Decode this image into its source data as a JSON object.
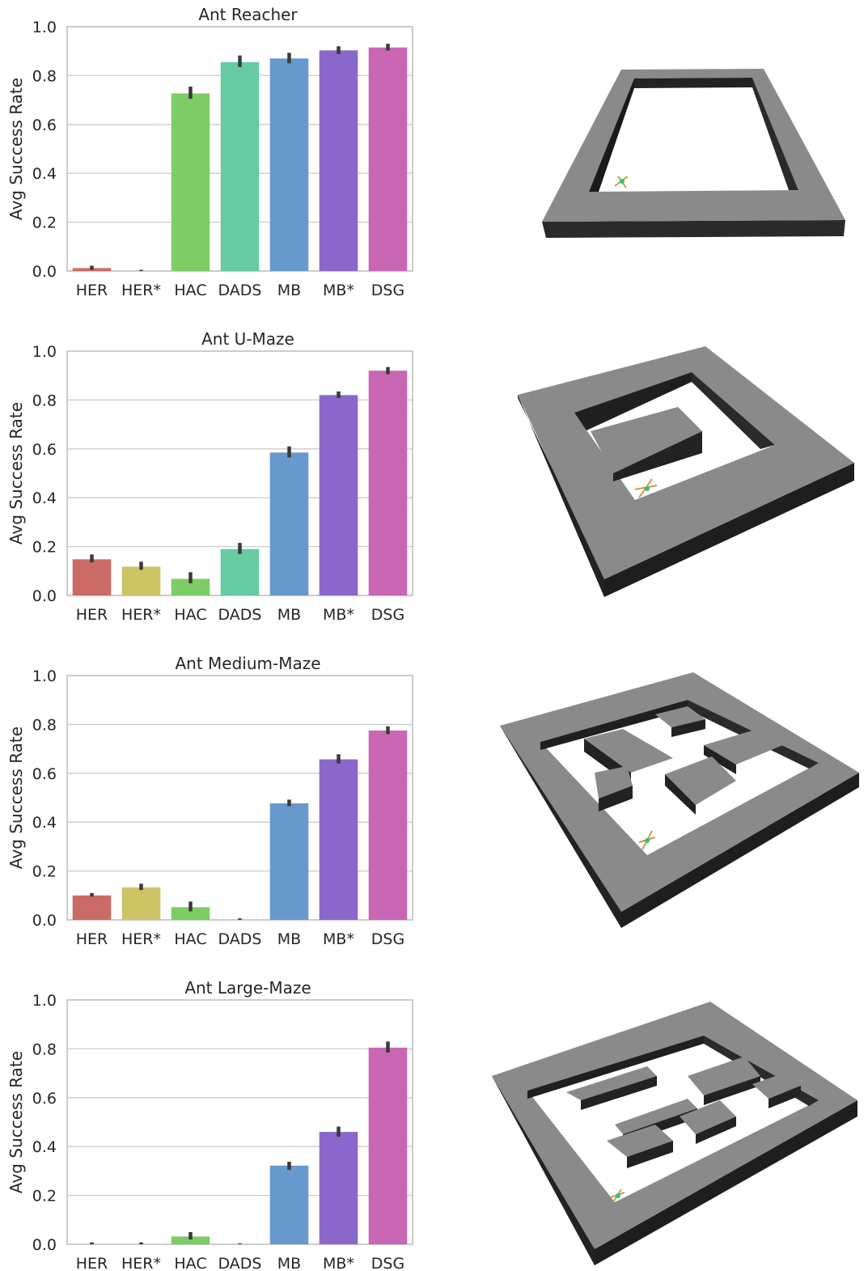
{
  "figure": {
    "colors": [
      "#cc6b66",
      "#cdc466",
      "#7ecc66",
      "#67cba3",
      "#6799cd",
      "#8a68cb",
      "#c967b4"
    ],
    "panels": [
      {
        "id": "reacher",
        "maze_image": "ant-reacher-maze-render"
      },
      {
        "id": "umaze",
        "maze_image": "ant-u-maze-render"
      },
      {
        "id": "medium",
        "maze_image": "ant-medium-maze-render"
      },
      {
        "id": "large",
        "maze_image": "ant-large-maze-render"
      }
    ]
  },
  "chart_data": [
    {
      "type": "bar",
      "title": "Ant Reacher",
      "xlabel": "",
      "ylabel": "Avg Success Rate",
      "ylim": [
        0,
        1.0
      ],
      "yticks": [
        "0.0",
        "0.2",
        "0.4",
        "0.6",
        "0.8",
        "1.0"
      ],
      "grid": "horizontal",
      "categories": [
        "HER",
        "HER*",
        "HAC",
        "DADS",
        "MB",
        "MB*",
        "DSG"
      ],
      "values": [
        0.012,
        0.0,
        0.727,
        0.855,
        0.87,
        0.903,
        0.915
      ],
      "error_low": [
        0.005,
        0.0,
        0.705,
        0.835,
        0.85,
        0.888,
        0.902
      ],
      "error_high": [
        0.022,
        0.005,
        0.755,
        0.882,
        0.893,
        0.92,
        0.93
      ]
    },
    {
      "type": "bar",
      "title": "Ant U-Maze",
      "xlabel": "",
      "ylabel": "Avg Success Rate",
      "ylim": [
        0,
        1.0
      ],
      "yticks": [
        "0.0",
        "0.2",
        "0.4",
        "0.6",
        "0.8",
        "1.0"
      ],
      "grid": "horizontal",
      "categories": [
        "HER",
        "HER*",
        "HAC",
        "DADS",
        "MB",
        "MB*",
        "DSG"
      ],
      "values": [
        0.148,
        0.118,
        0.068,
        0.19,
        0.585,
        0.82,
        0.92
      ],
      "error_low": [
        0.135,
        0.105,
        0.05,
        0.17,
        0.565,
        0.808,
        0.905
      ],
      "error_high": [
        0.168,
        0.138,
        0.095,
        0.215,
        0.61,
        0.835,
        0.935
      ]
    },
    {
      "type": "bar",
      "title": "Ant Medium-Maze",
      "xlabel": "",
      "ylabel": "Avg Success Rate",
      "ylim": [
        0,
        1.0
      ],
      "yticks": [
        "0.0",
        "0.2",
        "0.4",
        "0.6",
        "0.8",
        "1.0"
      ],
      "grid": "horizontal",
      "categories": [
        "HER",
        "HER*",
        "HAC",
        "DADS",
        "MB",
        "MB*",
        "DSG"
      ],
      "values": [
        0.1,
        0.133,
        0.052,
        0.0,
        0.477,
        0.657,
        0.775
      ],
      "error_low": [
        0.095,
        0.122,
        0.035,
        0.0,
        0.465,
        0.64,
        0.76
      ],
      "error_high": [
        0.11,
        0.148,
        0.075,
        0.006,
        0.492,
        0.678,
        0.792
      ]
    },
    {
      "type": "bar",
      "title": "Ant Large-Maze",
      "xlabel": "",
      "ylabel": "Avg Success Rate",
      "ylim": [
        0,
        1.0
      ],
      "yticks": [
        "0.0",
        "0.2",
        "0.4",
        "0.6",
        "0.8",
        "1.0"
      ],
      "grid": "horizontal",
      "categories": [
        "HER",
        "HER*",
        "HAC",
        "DADS",
        "MB",
        "MB*",
        "DSG"
      ],
      "values": [
        0.0,
        0.0,
        0.032,
        0.0,
        0.322,
        0.46,
        0.805
      ],
      "error_low": [
        0.0,
        0.0,
        0.02,
        0.0,
        0.305,
        0.44,
        0.785
      ],
      "error_high": [
        0.008,
        0.008,
        0.05,
        0.004,
        0.338,
        0.482,
        0.83
      ]
    }
  ]
}
